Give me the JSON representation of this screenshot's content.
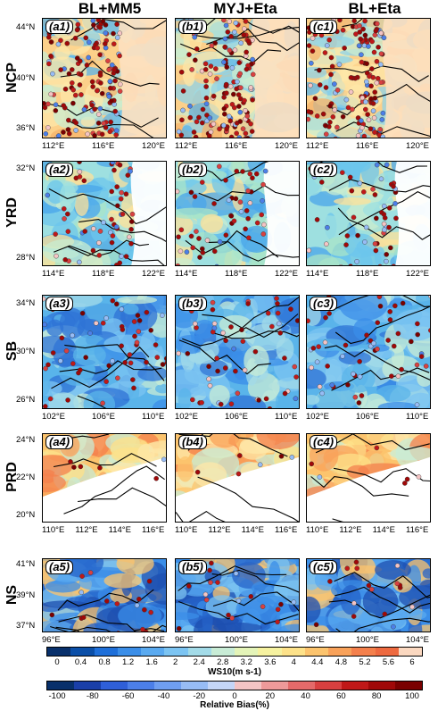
{
  "columns": [
    "BL+MM5",
    "MYJ+Eta",
    "BL+Eta"
  ],
  "rows": [
    {
      "name": "NCP",
      "lat_labels": [
        "44°N",
        "40°N",
        "36°N"
      ],
      "lon_labels": [
        "112°E",
        "116°E",
        "120°E"
      ],
      "labels": [
        "(a1)",
        "(b1)",
        "(c1)"
      ],
      "theme": "ncp"
    },
    {
      "name": "YRD",
      "lat_labels": [
        "32°N",
        "28°N"
      ],
      "lon_labels": [
        "114°E",
        "118°E",
        "122°E"
      ],
      "labels": [
        "(a2)",
        "(b2)",
        "(c2)"
      ],
      "theme": "yrd"
    },
    {
      "name": "SB",
      "lat_labels": [
        "34°N",
        "30°N",
        "26°N"
      ],
      "lon_labels": [
        "102°E",
        "106°E",
        "110°E"
      ],
      "labels": [
        "(a3)",
        "(b3)",
        "(c3)"
      ],
      "theme": "sb"
    },
    {
      "name": "PRD",
      "lat_labels": [
        "24°N",
        "22°N",
        "20°N"
      ],
      "lon_labels": [
        "110°E",
        "112°E",
        "114°E",
        "116°E"
      ],
      "labels": [
        "(a4)",
        "(b4)",
        "(c4)"
      ],
      "theme": "prd"
    },
    {
      "name": "NS",
      "lat_labels": [
        "41°N",
        "39°N",
        "37°N"
      ],
      "lon_labels": [
        "96°E",
        "100°E",
        "104°E"
      ],
      "labels": [
        "(a5)",
        "(b5)",
        "(c5)"
      ],
      "theme": "ns"
    }
  ],
  "ws_colorbar": {
    "title": "WS10(m s-1)",
    "ticks": [
      "0",
      "0.4",
      "0.8",
      "1.2",
      "1.6",
      "2",
      "2.4",
      "2.8",
      "3.2",
      "3.6",
      "4",
      "4.4",
      "4.8",
      "5.2",
      "5.6",
      "6"
    ],
    "colors": [
      "#08306b",
      "#0b4fa8",
      "#1e6fd9",
      "#3b8ee8",
      "#5aaaf0",
      "#7cc4f2",
      "#a3dbe8",
      "#c8ecd6",
      "#e4f4b8",
      "#f6f2a0",
      "#fde28a",
      "#fcc46e",
      "#f9a25a",
      "#f4804c",
      "#ee6a40",
      "#fbd8c0"
    ]
  },
  "bias_colorbar": {
    "title": "Relative Bias(%)",
    "ticks": [
      "-100",
      "-80",
      "-60",
      "-40",
      "-20",
      "0",
      "20",
      "40",
      "60",
      "80",
      "100"
    ],
    "colors": [
      "#08306b",
      "#1a3fa8",
      "#2f5fd8",
      "#4c7fe8",
      "#6f9ef0",
      "#97bcf5",
      "#c4d6f8",
      "#f4c4c4",
      "#ee9a9a",
      "#e46a6a",
      "#d84040",
      "#c01818",
      "#a00808",
      "#7a0000"
    ]
  }
}
